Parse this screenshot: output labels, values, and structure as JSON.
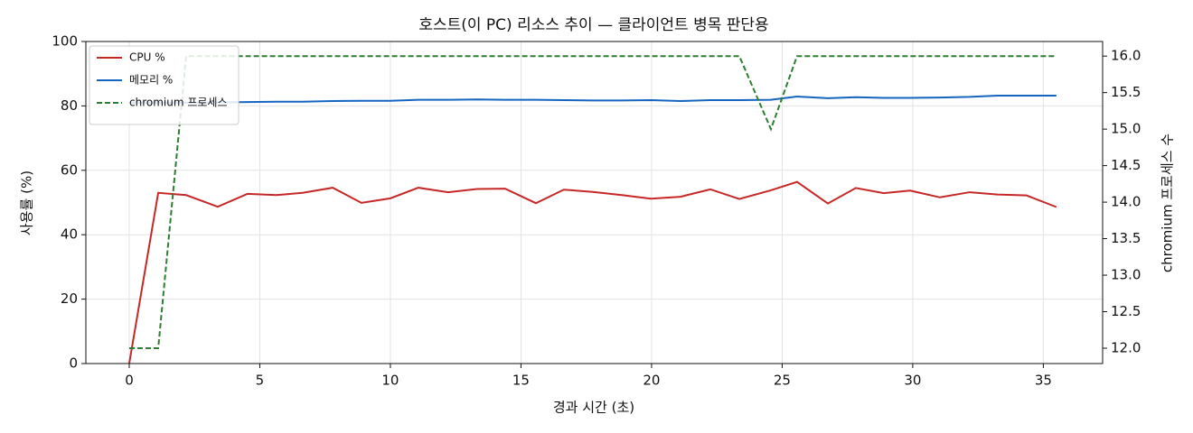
{
  "chart_data": {
    "type": "line",
    "title": "호스트(이 PC) 리소스 추이 — 클라이언트 병목 판단용",
    "xlabel": "경과 시간 (초)",
    "ylabel": "사용률 (%)",
    "y2label": "chromium 프로세스 수",
    "x": [
      0,
      1.11,
      2.18,
      3.39,
      4.53,
      5.64,
      6.64,
      7.79,
      8.89,
      10.0,
      11.07,
      12.21,
      13.32,
      14.39,
      15.57,
      16.64,
      17.75,
      18.86,
      19.97,
      21.11,
      22.25,
      23.36,
      24.57,
      25.57,
      26.75,
      27.82,
      28.89,
      29.9,
      31.04,
      32.18,
      33.25,
      34.36,
      35.5
    ],
    "series": [
      {
        "name": "CPU %",
        "color": "#c62828",
        "dash": false,
        "axis": "y",
        "values": [
          0,
          53,
          52.3,
          48.7,
          52.7,
          52.3,
          53,
          54.6,
          49.9,
          51.3,
          54.6,
          53.2,
          54.2,
          54.3,
          49.8,
          54.0,
          53.3,
          52.3,
          51.2,
          51.8,
          54.1,
          51.1,
          53.8,
          56.4,
          49.7,
          54.5,
          52.9,
          53.7,
          51.6,
          53.2,
          52.5,
          52.2,
          48.6
        ]
      },
      {
        "name": "메모리 %",
        "color": "#1565c0",
        "dash": false,
        "axis": "y",
        "values": [
          81,
          81,
          81,
          81.1,
          81.2,
          81.3,
          81.3,
          81.5,
          81.6,
          81.6,
          81.9,
          81.9,
          82.0,
          81.9,
          81.9,
          81.8,
          81.7,
          81.7,
          81.8,
          81.5,
          81.8,
          81.8,
          81.9,
          82.9,
          82.4,
          82.7,
          82.5,
          82.5,
          82.6,
          82.8,
          83.2,
          83.2,
          83.2
        ]
      },
      {
        "name": "chromium 프로세스",
        "color": "#2e7d32",
        "dash": true,
        "axis": "y2",
        "values": [
          12,
          12,
          16,
          16,
          16,
          16,
          16,
          16,
          16,
          16,
          16,
          16,
          16,
          16,
          16,
          16,
          16,
          16,
          16,
          16,
          16,
          16,
          15,
          16,
          16,
          16,
          16,
          16,
          16,
          16,
          16,
          16,
          16
        ]
      }
    ],
    "xlim": [
      -1.66,
      37.27
    ],
    "xticks": [
      0,
      5,
      10,
      15,
      20,
      25,
      30,
      35
    ],
    "ylim": [
      0,
      100
    ],
    "yticks": [
      0,
      20,
      40,
      60,
      80,
      100
    ],
    "y2lim": [
      11.79,
      16.2
    ],
    "y2ticks": [
      {
        "value": 12,
        "label": "12.0"
      },
      12.5,
      {
        "value": 13,
        "label": "13.0"
      },
      13.5,
      {
        "value": 14,
        "label": "14.0"
      },
      14.5,
      {
        "value": 15,
        "label": "15.0"
      },
      15.5,
      {
        "value": 16,
        "label": "16.0"
      }
    ],
    "grid": true,
    "legend": "upper left"
  }
}
